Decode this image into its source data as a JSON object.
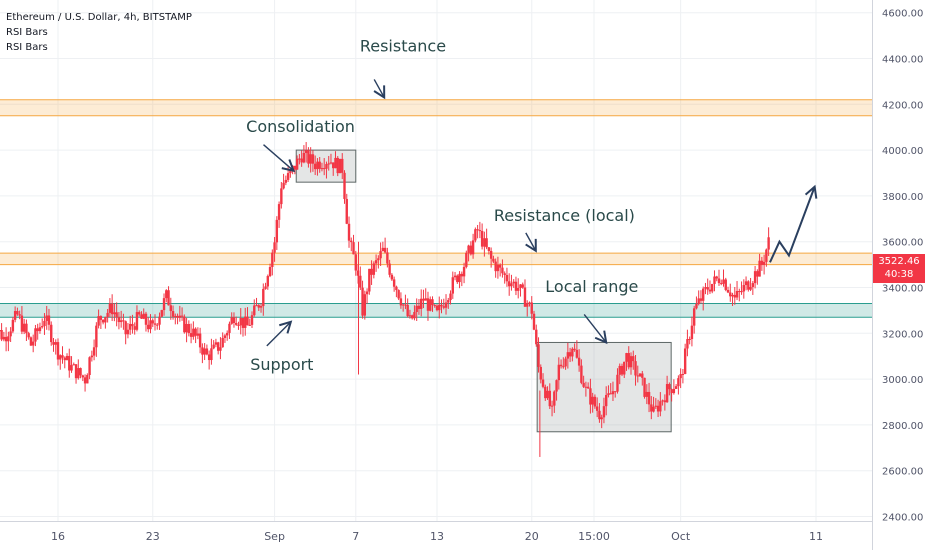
{
  "header": {
    "symbol": "Ethereum / U.S. Dollar, 4h, BITSTAMP",
    "indicators": [
      "RSI Bars",
      "RSI Bars"
    ]
  },
  "price_tag": {
    "price": "3522.46",
    "countdown": "40:38"
  },
  "colors": {
    "candle": "#f23645",
    "resistance_band": "#f5a742",
    "support_band": "#2a9d8f",
    "box": "#9e9e9e",
    "arrow": "#2a3f5f",
    "grid": "#eef0f3"
  },
  "chart_data": {
    "type": "candlestick",
    "title": "Ethereum / U.S. Dollar, 4h, BITSTAMP",
    "ylim": [
      2380,
      4700
    ],
    "y_ticks": [
      "2400.00",
      "2600.00",
      "2800.00",
      "3000.00",
      "3200.00",
      "3400.00",
      "3600.00",
      "3800.00",
      "4000.00",
      "4200.00",
      "4400.00",
      "4600.00"
    ],
    "x_ticks": [
      "16",
      "23",
      "Sep",
      "7",
      "13",
      "20",
      "15:00",
      "Oct",
      "11"
    ],
    "x_tick_days": [
      16,
      23,
      32,
      38,
      44,
      51,
      55.6,
      62,
      72
    ],
    "x_range_days": [
      11,
      81
    ],
    "grid": true,
    "last_price": 3522.46,
    "price_path": [
      [
        11,
        3250
      ],
      [
        12,
        3180
      ],
      [
        13,
        3280
      ],
      [
        14,
        3150
      ],
      [
        15,
        3270
      ],
      [
        16,
        3120
      ],
      [
        17,
        3050
      ],
      [
        18,
        3000
      ],
      [
        19,
        3260
      ],
      [
        20,
        3310
      ],
      [
        21,
        3200
      ],
      [
        22,
        3270
      ],
      [
        23,
        3220
      ],
      [
        24,
        3360
      ],
      [
        25,
        3250
      ],
      [
        26,
        3200
      ],
      [
        27,
        3100
      ],
      [
        28,
        3150
      ],
      [
        29,
        3280
      ],
      [
        30,
        3230
      ],
      [
        31,
        3350
      ],
      [
        32,
        3600
      ],
      [
        32.5,
        3850
      ],
      [
        33,
        3880
      ],
      [
        34,
        3980
      ],
      [
        35,
        3940
      ],
      [
        36,
        3960
      ],
      [
        37,
        3920
      ],
      [
        37.5,
        3600
      ],
      [
        38,
        3500
      ],
      [
        38.5,
        3300
      ],
      [
        39,
        3450
      ],
      [
        40,
        3560
      ],
      [
        41,
        3400
      ],
      [
        42,
        3250
      ],
      [
        43,
        3350
      ],
      [
        44,
        3280
      ],
      [
        45,
        3400
      ],
      [
        46,
        3500
      ],
      [
        47,
        3650
      ],
      [
        48,
        3520
      ],
      [
        49,
        3450
      ],
      [
        50,
        3400
      ],
      [
        51,
        3300
      ],
      [
        51.5,
        3050
      ],
      [
        52,
        2950
      ],
      [
        52.5,
        2850
      ],
      [
        53,
        3050
      ],
      [
        54,
        3150
      ],
      [
        55,
        2950
      ],
      [
        56,
        2850
      ],
      [
        57,
        2950
      ],
      [
        58,
        3100
      ],
      [
        59,
        3000
      ],
      [
        60,
        2850
      ],
      [
        61,
        2950
      ],
      [
        62,
        3000
      ],
      [
        62.5,
        3150
      ],
      [
        63,
        3300
      ],
      [
        64,
        3400
      ],
      [
        65,
        3450
      ],
      [
        66,
        3350
      ],
      [
        67,
        3420
      ],
      [
        68,
        3500
      ],
      [
        68.5,
        3600
      ]
    ],
    "levels": [
      {
        "name": "Resistance",
        "low": 4150,
        "high": 4220
      },
      {
        "name": "Resistance (local)",
        "low": 3500,
        "high": 3550
      },
      {
        "name": "Support",
        "low": 3270,
        "high": 3330
      }
    ],
    "boxes": [
      {
        "name": "Consolidation",
        "x0": 33.6,
        "x1": 38.0,
        "y0": 3860,
        "y1": 4000
      },
      {
        "name": "Local range",
        "x0": 51.4,
        "x1": 61.3,
        "y0": 2770,
        "y1": 3160
      }
    ],
    "projection": [
      [
        68.6,
        3510
      ],
      [
        69.3,
        3600
      ],
      [
        70.0,
        3540
      ],
      [
        71.9,
        3840
      ]
    ],
    "annotations": [
      {
        "text": "Resistance",
        "day": 38.3,
        "price": 4430,
        "arrow_to": [
          40.1,
          4230
        ]
      },
      {
        "text": "Consolidation",
        "day": 29.9,
        "price": 4080,
        "arrow_to": [
          33.4,
          3910
        ]
      },
      {
        "text": "Resistance (local)",
        "day": 48.2,
        "price": 3690,
        "arrow_to": [
          51.3,
          3560
        ]
      },
      {
        "text": "Support",
        "day": 30.2,
        "price": 3040,
        "arrow_to": [
          33.2,
          3250
        ]
      },
      {
        "text": "Local range",
        "day": 52.0,
        "price": 3380,
        "arrow_to": [
          56.5,
          3160
        ]
      }
    ]
  }
}
